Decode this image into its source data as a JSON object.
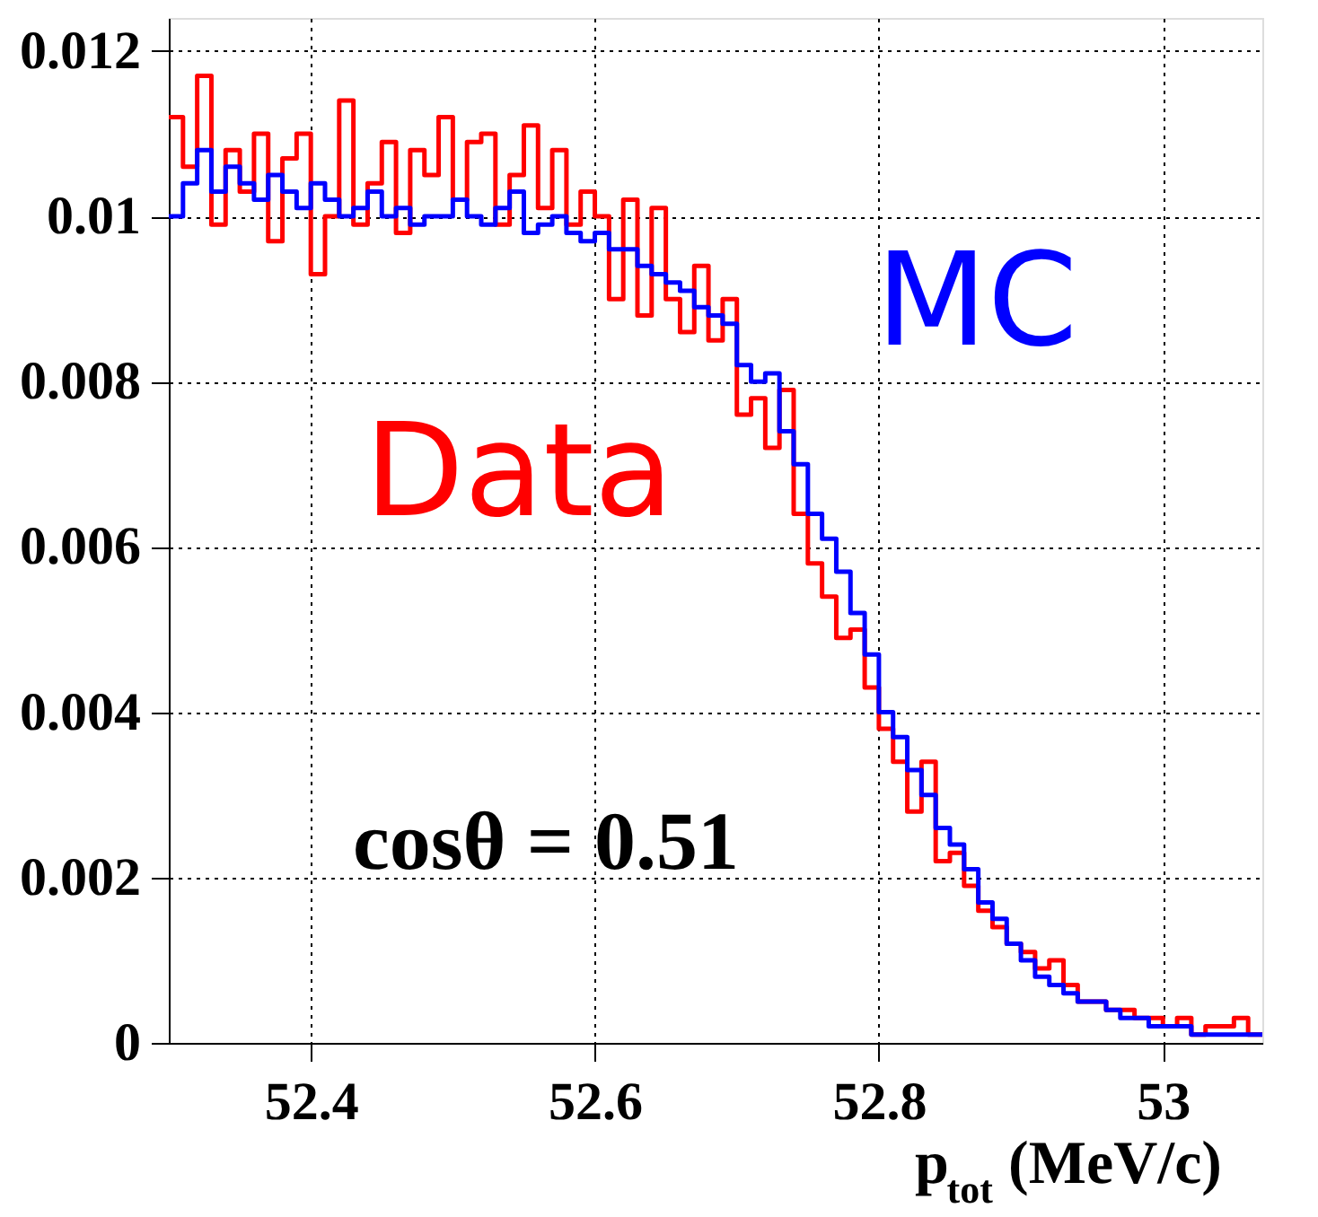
{
  "chart_data": {
    "type": "histogram",
    "bins": [
      52.3,
      52.31,
      52.32,
      52.33,
      52.34,
      52.35,
      52.36,
      52.37,
      52.38,
      52.39,
      52.4,
      52.41,
      52.42,
      52.43,
      52.44,
      52.45,
      52.46,
      52.47,
      52.48,
      52.49,
      52.5,
      52.51,
      52.52,
      52.53,
      52.54,
      52.55,
      52.56,
      52.57,
      52.58,
      52.59,
      52.6,
      52.61,
      52.62,
      52.63,
      52.64,
      52.65,
      52.66,
      52.67,
      52.68,
      52.69,
      52.7,
      52.71,
      52.72,
      52.73,
      52.74,
      52.75,
      52.76,
      52.77,
      52.78,
      52.79,
      52.8,
      52.81,
      52.82,
      52.83,
      52.84,
      52.85,
      52.86,
      52.87,
      52.88,
      52.89,
      52.9,
      52.91,
      52.92,
      52.93,
      52.94,
      52.95,
      52.96,
      52.97,
      52.98,
      52.99,
      53.0,
      53.01,
      53.02,
      53.03,
      53.04,
      53.05,
      53.06,
      53.07
    ],
    "series": [
      {
        "name": "Data",
        "color": "#ff0000",
        "values": [
          0.0112,
          0.0106,
          0.0117,
          0.0099,
          0.0108,
          0.0103,
          0.011,
          0.0097,
          0.0107,
          0.011,
          0.0093,
          0.01,
          0.0114,
          0.0099,
          0.0104,
          0.0109,
          0.0098,
          0.0108,
          0.0105,
          0.0112,
          0.0102,
          0.0109,
          0.011,
          0.0099,
          0.0105,
          0.0111,
          0.0101,
          0.0108,
          0.0099,
          0.0103,
          0.01,
          0.009,
          0.0102,
          0.0088,
          0.0101,
          0.009,
          0.0086,
          0.0094,
          0.0085,
          0.009,
          0.0076,
          0.0078,
          0.0072,
          0.0079,
          0.0064,
          0.0058,
          0.0054,
          0.0049,
          0.005,
          0.0043,
          0.0038,
          0.0034,
          0.0028,
          0.0034,
          0.0022,
          0.0023,
          0.0019,
          0.0016,
          0.0014,
          0.0012,
          0.0011,
          0.0009,
          0.001,
          0.0007,
          0.0005,
          0.0005,
          0.0004,
          0.0004,
          0.0003,
          0.0003,
          0.0002,
          0.0003,
          0.0001,
          0.0002,
          0.0002,
          0.0003,
          0.0001
        ]
      },
      {
        "name": "MC",
        "color": "#0000ff",
        "values": [
          0.01,
          0.0104,
          0.0108,
          0.0103,
          0.0106,
          0.0104,
          0.0102,
          0.0105,
          0.0103,
          0.0101,
          0.0104,
          0.0102,
          0.01,
          0.0101,
          0.0103,
          0.01,
          0.0101,
          0.0099,
          0.01,
          0.01,
          0.0102,
          0.01,
          0.0099,
          0.0101,
          0.0103,
          0.0098,
          0.0099,
          0.01,
          0.0098,
          0.0097,
          0.0098,
          0.0096,
          0.0096,
          0.0094,
          0.0093,
          0.0092,
          0.0091,
          0.0089,
          0.0088,
          0.0087,
          0.0082,
          0.008,
          0.0081,
          0.0074,
          0.007,
          0.0064,
          0.0061,
          0.0057,
          0.0052,
          0.0047,
          0.004,
          0.0037,
          0.0033,
          0.003,
          0.0026,
          0.0024,
          0.0021,
          0.0017,
          0.0015,
          0.0012,
          0.001,
          0.0008,
          0.0007,
          0.0006,
          0.0005,
          0.0005,
          0.0004,
          0.0003,
          0.0003,
          0.0002,
          0.0002,
          0.0002,
          0.0001,
          0.0001,
          0.0001,
          0.0001,
          0.0001
        ]
      }
    ],
    "xlabel": "p$_{tot}$ (MeV/c)",
    "annotations": [
      "cosθ = 0.51"
    ],
    "xlim": [
      52.3,
      53.07
    ],
    "ylim": [
      0,
      0.0124
    ],
    "xticks": [
      52.4,
      52.6,
      52.8,
      53
    ],
    "yticks": [
      0,
      0.002,
      0.004,
      0.006,
      0.008,
      0.01,
      0.012
    ],
    "grid": true,
    "legend": false
  }
}
